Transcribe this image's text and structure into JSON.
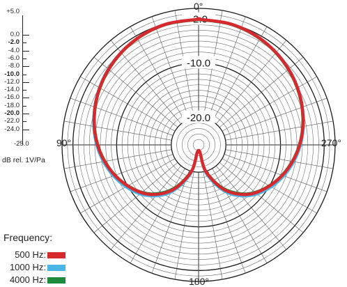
{
  "chart_data": {
    "type": "polar",
    "title": "",
    "angle_labels": [
      "0°",
      "90°",
      "180°",
      "270°"
    ],
    "radial_labels": [
      "-2.0",
      "-10.0",
      "-20.0"
    ],
    "scale_labels": [
      "+5.0",
      "0.0",
      "-2.0",
      "-4.0",
      "-6.0",
      "-8.0",
      "-10.0",
      "-12.0",
      "-14.0",
      "-16.0",
      "-18.0",
      "-20.0",
      "-22.0",
      "-24.0",
      "-25.0"
    ],
    "bold_scale_labels": [
      "-2.0",
      "-10.0",
      "-20.0"
    ],
    "unit_label": "dB rel. 1V/Pa",
    "rlim": [
      -25,
      5
    ],
    "grid": true,
    "legend_title": "Frequency:",
    "series": [
      {
        "name": "500 Hz:",
        "color": "#d62a2f",
        "angles": [
          0,
          15,
          30,
          45,
          60,
          75,
          90,
          105,
          120,
          135,
          150,
          165,
          180
        ],
        "values": [
          -2.0,
          -2.1,
          -2.5,
          -3.2,
          -4.1,
          -5.2,
          -6.5,
          -8.1,
          -10.0,
          -12.2,
          -15.5,
          -20.0,
          -24.0
        ]
      },
      {
        "name": "1000 Hz:",
        "color": "#4bb6e6",
        "angles": [
          0,
          15,
          30,
          45,
          60,
          75,
          90,
          105,
          120,
          135,
          150,
          165,
          180
        ],
        "values": [
          -2.0,
          -2.1,
          -2.5,
          -3.1,
          -4.0,
          -5.1,
          -6.3,
          -7.8,
          -9.6,
          -11.8,
          -15.0,
          -19.5,
          -24.0
        ]
      },
      {
        "name": "4000 Hz:",
        "color": "#1e8a3c",
        "angles": [
          0,
          15,
          30,
          45,
          60,
          75,
          90,
          105,
          120,
          135,
          150,
          165,
          180
        ],
        "values": [
          -2.1,
          -2.2,
          -2.6,
          -3.3,
          -4.2,
          -5.3,
          -6.6,
          -8.2,
          -10.1,
          -12.4,
          -15.8,
          -20.2,
          -24.0
        ]
      }
    ]
  }
}
